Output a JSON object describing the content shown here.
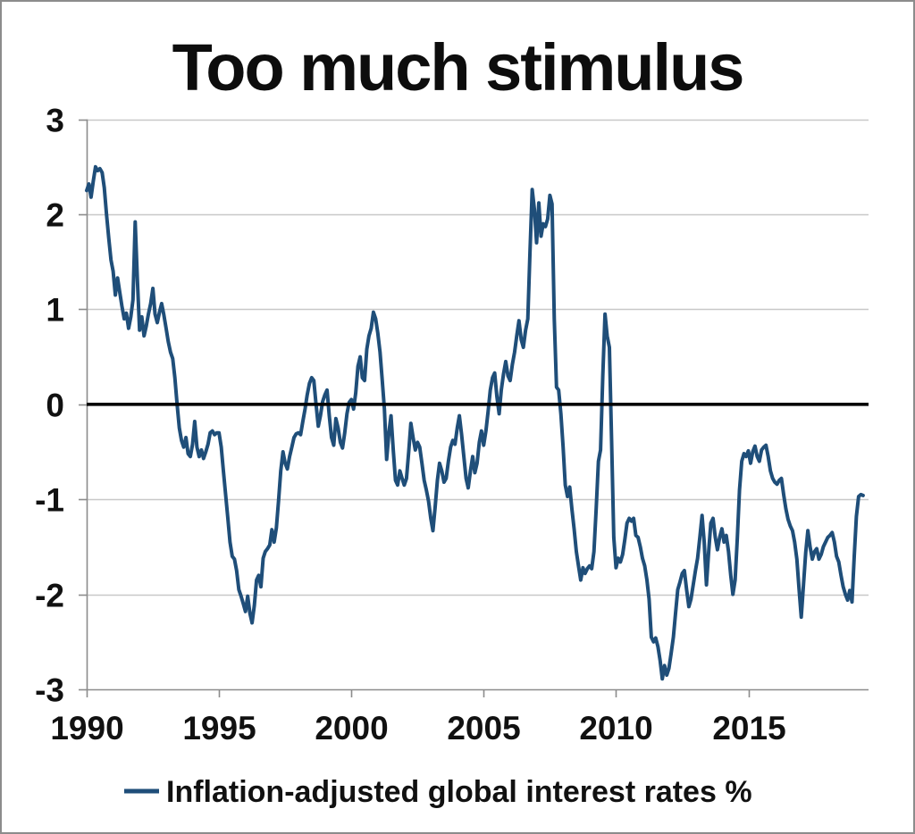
{
  "title": "Too much stimulus",
  "legend": {
    "label": "Inflation-adjusted global interest rates %"
  },
  "colors": {
    "series_line": "#1f4e79",
    "zero_line": "#000000",
    "gridline": "#c8c8c8",
    "axis": "#8c8c8c",
    "text": "#111111",
    "background": "#ffffff",
    "frame_border": "#8c8c8c"
  },
  "chart_data": {
    "type": "line",
    "title": "Too much stimulus",
    "series_name": "Inflation-adjusted global interest rates %",
    "unit": "%",
    "x_start_year": 1990,
    "points_per_year": 12,
    "x_ticks": [
      1990,
      1995,
      2000,
      2005,
      2010,
      2015
    ],
    "y_ticks": [
      3,
      2,
      1,
      0,
      -1,
      -2,
      -3
    ],
    "ylim": [
      -3,
      3
    ],
    "xlim": [
      1990,
      2019.6
    ],
    "grid": "horizontal",
    "zero_line_bold": true,
    "legend_position": "bottom",
    "values": [
      2.25,
      2.32,
      2.18,
      2.35,
      2.5,
      2.46,
      2.48,
      2.44,
      2.28,
      2.0,
      1.75,
      1.52,
      1.4,
      1.15,
      1.33,
      1.18,
      1.03,
      0.9,
      0.96,
      0.8,
      0.92,
      1.1,
      1.92,
      1.3,
      0.78,
      0.92,
      0.72,
      0.82,
      0.95,
      1.06,
      1.22,
      0.95,
      0.86,
      0.97,
      1.06,
      0.94,
      0.8,
      0.66,
      0.55,
      0.48,
      0.28,
      0.0,
      -0.25,
      -0.38,
      -0.45,
      -0.35,
      -0.52,
      -0.55,
      -0.42,
      -0.18,
      -0.45,
      -0.55,
      -0.48,
      -0.57,
      -0.5,
      -0.42,
      -0.3,
      -0.28,
      -0.32,
      -0.3,
      -0.3,
      -0.45,
      -0.7,
      -0.95,
      -1.2,
      -1.45,
      -1.6,
      -1.63,
      -1.75,
      -1.95,
      -2.02,
      -2.1,
      -2.18,
      -2.02,
      -2.2,
      -2.3,
      -2.12,
      -1.85,
      -1.8,
      -1.92,
      -1.62,
      -1.55,
      -1.52,
      -1.48,
      -1.32,
      -1.45,
      -1.3,
      -1.02,
      -0.7,
      -0.5,
      -0.62,
      -0.68,
      -0.55,
      -0.45,
      -0.35,
      -0.31,
      -0.3,
      -0.32,
      -0.18,
      -0.05,
      0.1,
      0.22,
      0.28,
      0.25,
      0.0,
      -0.23,
      -0.12,
      0.03,
      0.1,
      0.15,
      -0.12,
      -0.35,
      -0.43,
      -0.15,
      -0.25,
      -0.4,
      -0.46,
      -0.3,
      -0.1,
      0.02,
      0.05,
      -0.05,
      0.12,
      0.4,
      0.5,
      0.28,
      0.25,
      0.58,
      0.72,
      0.8,
      0.97,
      0.9,
      0.75,
      0.55,
      0.25,
      -0.05,
      -0.58,
      -0.3,
      -0.12,
      -0.48,
      -0.8,
      -0.85,
      -0.7,
      -0.78,
      -0.85,
      -0.78,
      -0.5,
      -0.2,
      -0.35,
      -0.48,
      -0.4,
      -0.45,
      -0.62,
      -0.8,
      -0.9,
      -1.02,
      -1.2,
      -1.33,
      -1.08,
      -0.8,
      -0.62,
      -0.7,
      -0.82,
      -0.78,
      -0.6,
      -0.45,
      -0.38,
      -0.42,
      -0.25,
      -0.12,
      -0.32,
      -0.55,
      -0.78,
      -0.88,
      -0.7,
      -0.55,
      -0.72,
      -0.62,
      -0.4,
      -0.28,
      -0.43,
      -0.28,
      -0.08,
      0.15,
      0.28,
      0.33,
      0.08,
      -0.1,
      0.15,
      0.32,
      0.45,
      0.3,
      0.25,
      0.42,
      0.55,
      0.72,
      0.88,
      0.68,
      0.6,
      0.78,
      0.9,
      1.6,
      2.26,
      2.05,
      1.7,
      2.12,
      1.77,
      1.9,
      1.87,
      1.95,
      2.2,
      2.11,
      0.9,
      0.18,
      0.15,
      -0.1,
      -0.45,
      -0.85,
      -0.97,
      -0.87,
      -1.1,
      -1.31,
      -1.55,
      -1.7,
      -1.85,
      -1.72,
      -1.78,
      -1.73,
      -1.7,
      -1.73,
      -1.55,
      -1.1,
      -0.6,
      -0.48,
      0.3,
      0.95,
      0.72,
      0.6,
      -0.4,
      -1.4,
      -1.72,
      -1.62,
      -1.66,
      -1.58,
      -1.42,
      -1.25,
      -1.2,
      -1.23,
      -1.2,
      -1.38,
      -1.4,
      -1.5,
      -1.62,
      -1.7,
      -1.85,
      -2.05,
      -2.45,
      -2.5,
      -2.46,
      -2.55,
      -2.7,
      -2.89,
      -2.75,
      -2.85,
      -2.78,
      -2.62,
      -2.45,
      -2.2,
      -1.95,
      -1.87,
      -1.78,
      -1.75,
      -1.95,
      -2.13,
      -2.05,
      -1.9,
      -1.75,
      -1.62,
      -1.4,
      -1.17,
      -1.45,
      -1.9,
      -1.55,
      -1.25,
      -1.2,
      -1.4,
      -1.53,
      -1.4,
      -1.31,
      -1.45,
      -1.38,
      -1.55,
      -1.8,
      -2.0,
      -1.85,
      -1.4,
      -0.9,
      -0.6,
      -0.52,
      -0.55,
      -0.49,
      -0.62,
      -0.5,
      -0.44,
      -0.55,
      -0.6,
      -0.48,
      -0.45,
      -0.43,
      -0.55,
      -0.7,
      -0.78,
      -0.82,
      -0.84,
      -0.8,
      -0.78,
      -0.95,
      -1.1,
      -1.21,
      -1.28,
      -1.33,
      -1.45,
      -1.63,
      -1.95,
      -2.24,
      -1.9,
      -1.56,
      -1.33,
      -1.5,
      -1.63,
      -1.55,
      -1.52,
      -1.63,
      -1.58,
      -1.5,
      -1.45,
      -1.4,
      -1.38,
      -1.35,
      -1.45,
      -1.6,
      -1.66,
      -1.8,
      -1.92,
      -2.0,
      -2.06,
      -1.96,
      -2.08,
      -1.6,
      -1.18,
      -0.97,
      -0.95,
      -0.96
    ]
  }
}
